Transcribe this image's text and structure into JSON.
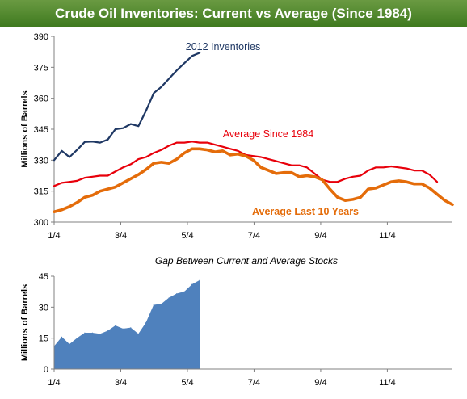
{
  "title": "Crude Oil Inventories: Current vs Average (Since 1984)",
  "chart_data": [
    {
      "type": "line",
      "ylabel": "Millions of Barrels",
      "ylim": [
        300,
        390
      ],
      "yticks": [
        "300",
        "315",
        "330",
        "345",
        "360",
        "375",
        "390"
      ],
      "xlim": [
        0,
        52
      ],
      "xticks": [
        {
          "pos": 0,
          "label": "1/4"
        },
        {
          "pos": 8.7,
          "label": "3/4"
        },
        {
          "pos": 17.4,
          "label": "5/4"
        },
        {
          "pos": 26.1,
          "label": "7/4"
        },
        {
          "pos": 34.8,
          "label": "9/4"
        },
        {
          "pos": 43.5,
          "label": "11/4"
        }
      ],
      "grid": false,
      "series": [
        {
          "name": "2012 Inventories",
          "color": "#1f3864",
          "label_anchor": 22,
          "values": [
            330,
            334.5,
            331.5,
            335,
            338.8,
            339,
            338.5,
            340,
            345,
            345.5,
            347.5,
            346.5,
            354,
            362.5,
            365.5,
            369.5,
            373.5,
            377,
            380.5,
            382
          ]
        },
        {
          "name": "Average Since 1984",
          "color": "#e8000b",
          "label_anchor": 19,
          "values": [
            317.5,
            319,
            319.5,
            320,
            321.5,
            322,
            322.5,
            322.5,
            324.5,
            326.5,
            328,
            330.5,
            331.5,
            333.5,
            335,
            337,
            338.5,
            338.5,
            339,
            338.5,
            338.5,
            337.5,
            336.5,
            335.5,
            334.5,
            332.5,
            332,
            331.5,
            330.5,
            329.5,
            328.5,
            327.5,
            327.5,
            326.5,
            323.5,
            320.5,
            319.5,
            319.5,
            321,
            322,
            322.5,
            325,
            326.5,
            326.5,
            327,
            326.5,
            326,
            325,
            325,
            323,
            319.5
          ]
        },
        {
          "name": "Average Last 10 Years",
          "color": "#e46c0a",
          "label_anchor": 40,
          "values": [
            305,
            306,
            307.5,
            309.5,
            312,
            313,
            315,
            316,
            317,
            319,
            321,
            323,
            325.5,
            328.5,
            329,
            328.5,
            330.5,
            333.5,
            335.5,
            335.5,
            335,
            334,
            334.5,
            332.5,
            333,
            332,
            330,
            326.5,
            325,
            323.5,
            324,
            324,
            322,
            322.5,
            322,
            320.5,
            316,
            312,
            310.5,
            311,
            312,
            316,
            316.5,
            318,
            319.5,
            320,
            319.5,
            318.5,
            318.5,
            316.5,
            313.5,
            310.5,
            308.5
          ]
        }
      ]
    },
    {
      "type": "area",
      "title": "Gap Between Current and Average Stocks",
      "ylabel": "Millions of Barrels",
      "ylim": [
        0,
        45
      ],
      "yticks": [
        "0",
        "15",
        "30",
        "45"
      ],
      "xlim": [
        0,
        52
      ],
      "xticks": [
        {
          "pos": 0,
          "label": "1/4"
        },
        {
          "pos": 8.7,
          "label": "3/4"
        },
        {
          "pos": 17.4,
          "label": "5/4"
        },
        {
          "pos": 26.1,
          "label": "7/4"
        },
        {
          "pos": 34.8,
          "label": "9/4"
        },
        {
          "pos": 43.5,
          "label": "11/4"
        }
      ],
      "grid": false,
      "series": [
        {
          "name": "Gap",
          "color": "#4f81bd",
          "values": [
            11,
            15.5,
            12,
            15,
            17.5,
            17.5,
            17,
            18.5,
            21,
            19.5,
            20,
            17,
            22.5,
            31,
            31.5,
            34.5,
            36.5,
            37.5,
            41,
            43
          ]
        }
      ]
    }
  ]
}
